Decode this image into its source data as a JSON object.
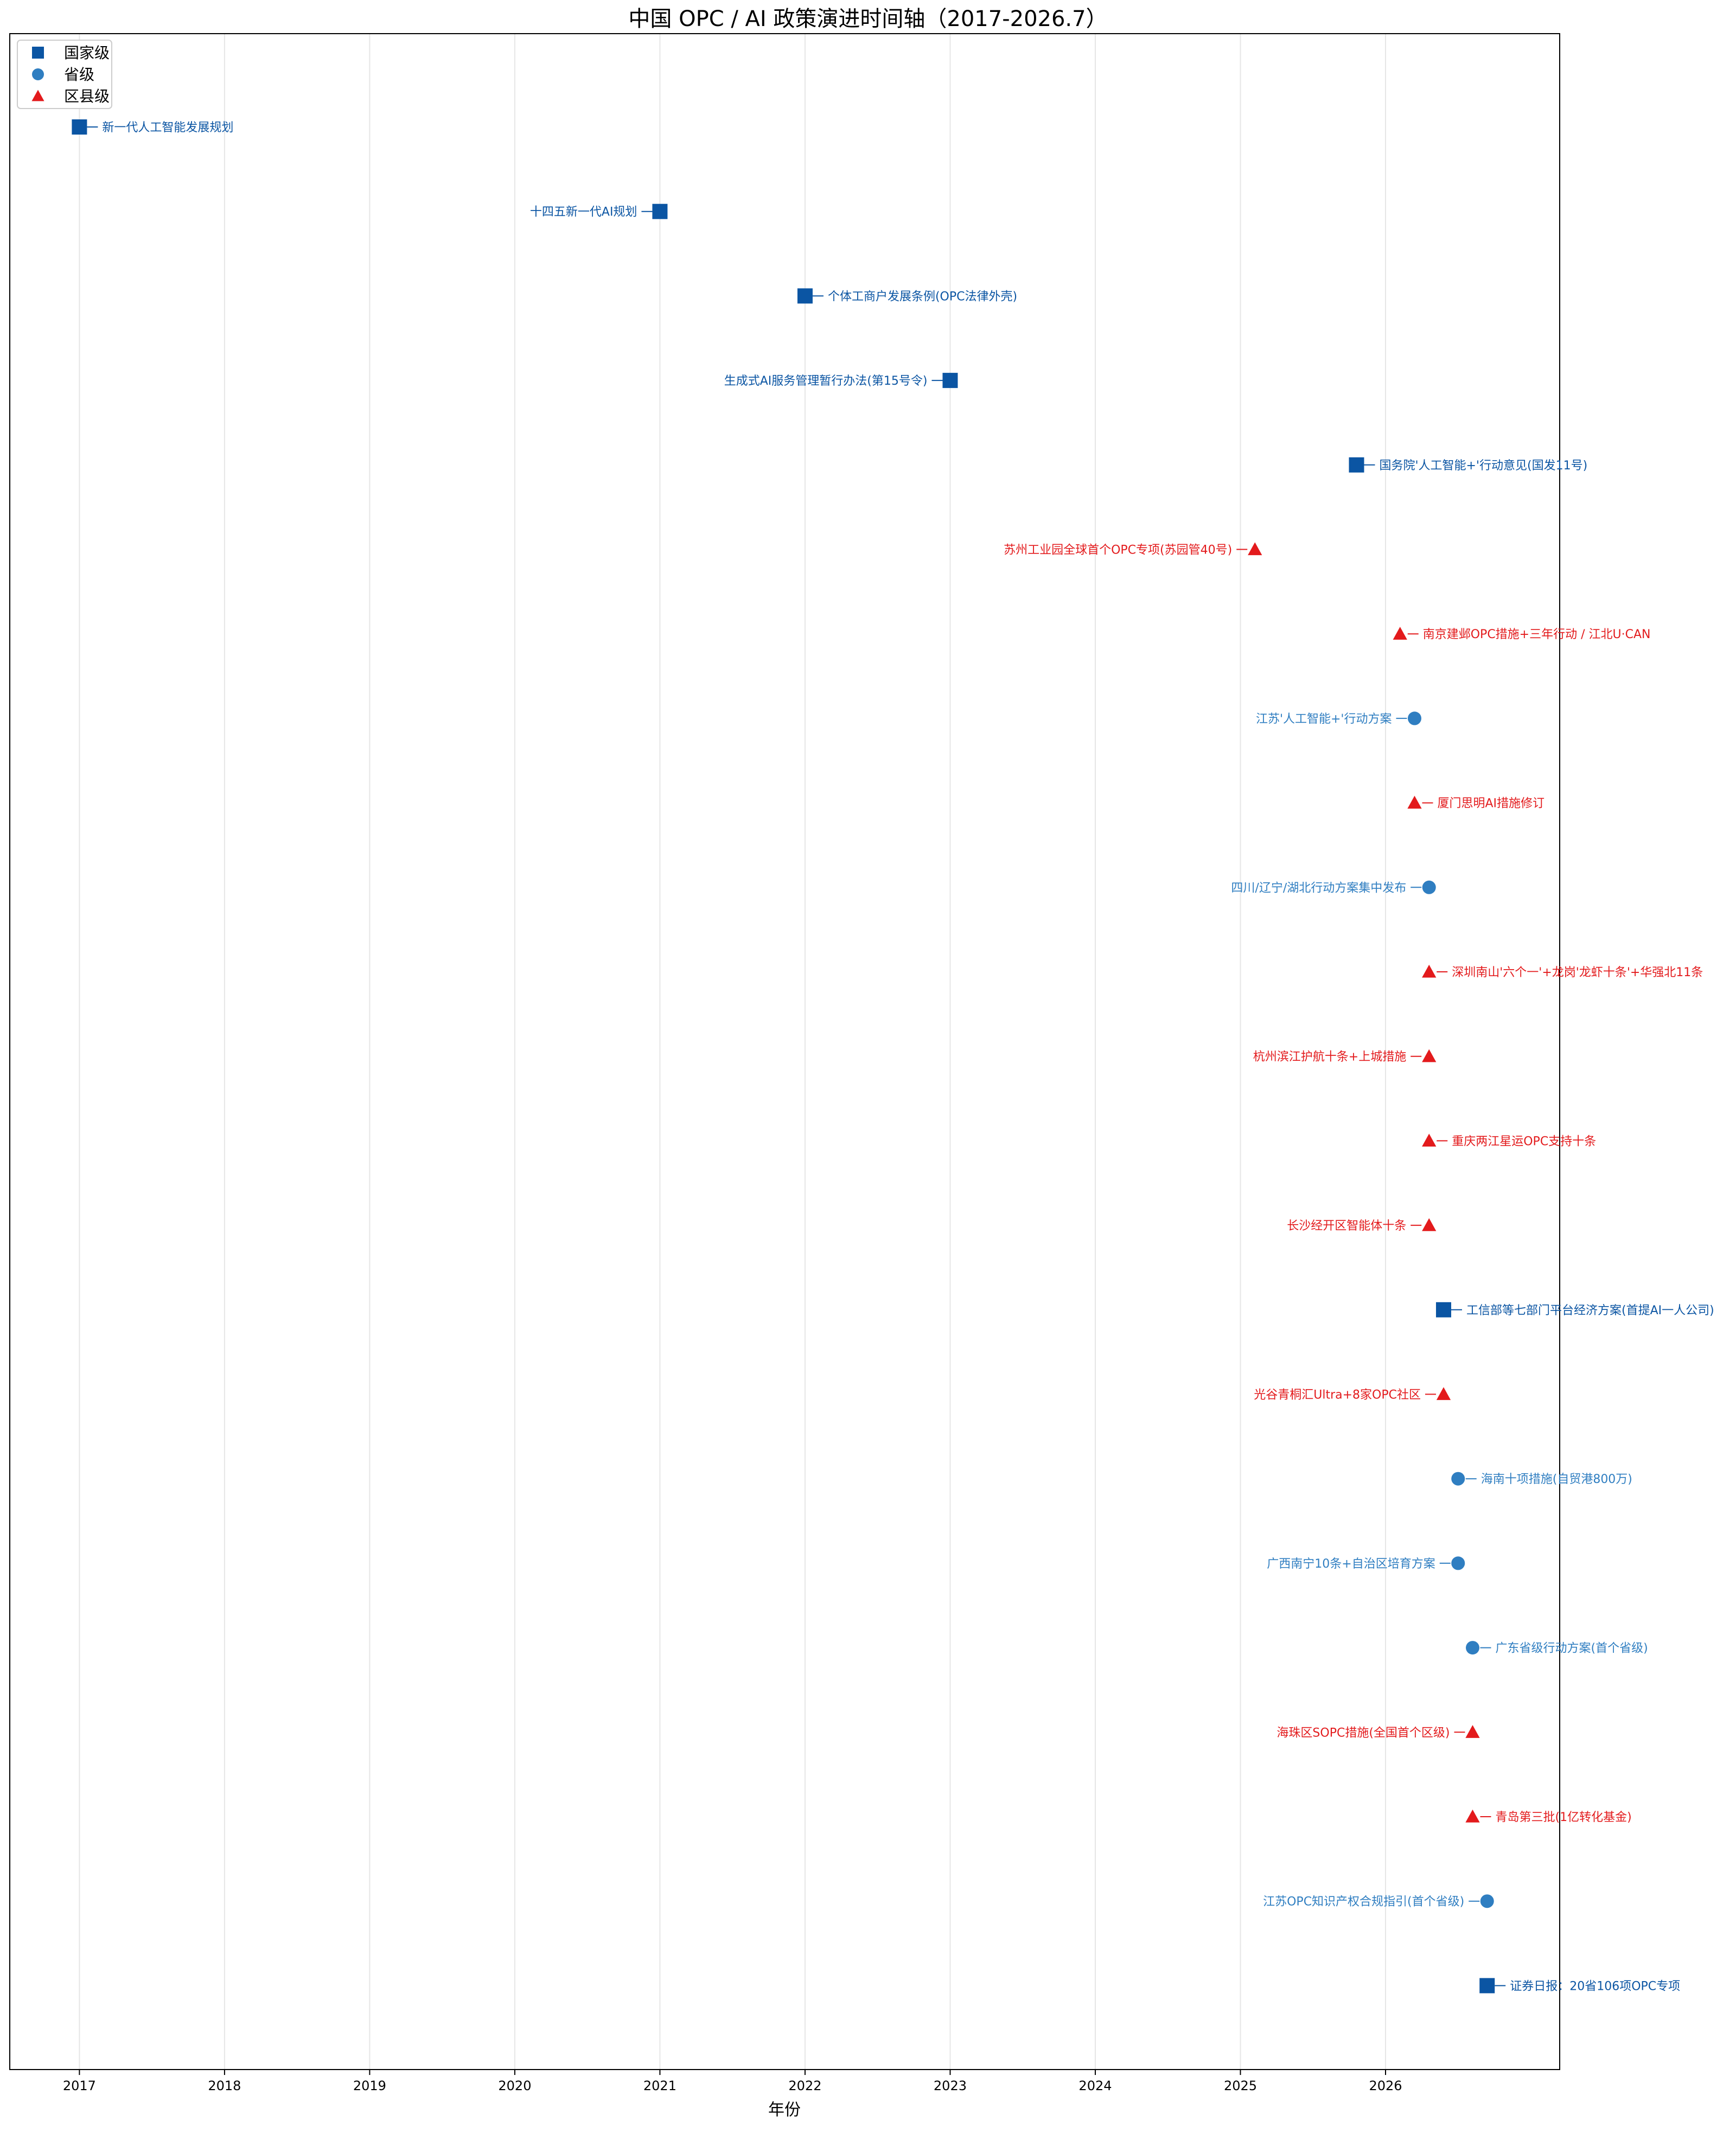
{
  "chart_data": {
    "type": "scatter",
    "title": "中国 OPC / AI 政策演进时间轴（2017-2026.7）",
    "xlabel": "年份",
    "ylabel": "",
    "xlim": [
      2016.52,
      2027.2
    ],
    "x_ticks": [
      "2017",
      "2018",
      "2019",
      "2020",
      "2021",
      "2022",
      "2023",
      "2024",
      "2025",
      "2026"
    ],
    "grid": "vertical",
    "legend_position": "top-left",
    "series": [
      {
        "name": "国家级",
        "marker": "square",
        "color": "#0b55a3"
      },
      {
        "name": "省级",
        "marker": "circle",
        "color": "#2f7ec1"
      },
      {
        "name": "区县级",
        "marker": "triangle",
        "color": "#e31a1c"
      }
    ],
    "events": [
      {
        "x": 2017.0,
        "level": "国家级",
        "label": "新一代人工智能发展规划",
        "side": "right"
      },
      {
        "x": 2021.0,
        "level": "国家级",
        "label": "十四五新一代AI规划",
        "side": "left"
      },
      {
        "x": 2022.0,
        "level": "国家级",
        "label": "个体工商户发展条例(OPC法律外壳)",
        "side": "right"
      },
      {
        "x": 2023.0,
        "level": "国家级",
        "label": "生成式AI服务管理暂行办法(第15号令)",
        "side": "left"
      },
      {
        "x": 2025.8,
        "level": "国家级",
        "label": "国务院'人工智能+'行动意见(国发11号)",
        "side": "right"
      },
      {
        "x": 2025.1,
        "level": "区县级",
        "label": "苏州工业园全球首个OPC专项(苏园管40号)",
        "side": "left"
      },
      {
        "x": 2026.1,
        "level": "区县级",
        "label": "南京建邺OPC措施+三年行动 / 江北U·CAN",
        "side": "right"
      },
      {
        "x": 2026.2,
        "level": "省级",
        "label": "江苏'人工智能+'行动方案",
        "side": "left"
      },
      {
        "x": 2026.2,
        "level": "区县级",
        "label": "厦门思明AI措施修订",
        "side": "right"
      },
      {
        "x": 2026.3,
        "level": "省级",
        "label": "四川/辽宁/湖北行动方案集中发布",
        "side": "left"
      },
      {
        "x": 2026.3,
        "level": "区县级",
        "label": "深圳南山'六个一'+龙岗'龙虾十条'+华强北11条",
        "side": "right"
      },
      {
        "x": 2026.3,
        "level": "区县级",
        "label": "杭州滨江护航十条+上城措施",
        "side": "left"
      },
      {
        "x": 2026.3,
        "level": "区县级",
        "label": "重庆两江星运OPC支持十条",
        "side": "right"
      },
      {
        "x": 2026.3,
        "level": "区县级",
        "label": "长沙经开区智能体十条",
        "side": "left"
      },
      {
        "x": 2026.4,
        "level": "国家级",
        "label": "工信部等七部门平台经济方案(首提AI一人公司)",
        "side": "right"
      },
      {
        "x": 2026.4,
        "level": "区县级",
        "label": "光谷青桐汇Ultra+8家OPC社区",
        "side": "left"
      },
      {
        "x": 2026.5,
        "level": "省级",
        "label": "海南十项措施(自贸港800万)",
        "side": "right"
      },
      {
        "x": 2026.5,
        "level": "省级",
        "label": "广西南宁10条+自治区培育方案",
        "side": "left"
      },
      {
        "x": 2026.6,
        "level": "省级",
        "label": "广东省级行动方案(首个省级)",
        "side": "right"
      },
      {
        "x": 2026.6,
        "level": "区县级",
        "label": "海珠区SOPC措施(全国首个区级)",
        "side": "left"
      },
      {
        "x": 2026.6,
        "level": "区县级",
        "label": "青岛第三批(1亿转化基金)",
        "side": "right"
      },
      {
        "x": 2026.7,
        "level": "省级",
        "label": "江苏OPC知识产权合规指引(首个省级)",
        "side": "left"
      },
      {
        "x": 2026.7,
        "level": "国家级",
        "label": "证券日报：20省106项OPC专项",
        "side": "right"
      }
    ]
  }
}
